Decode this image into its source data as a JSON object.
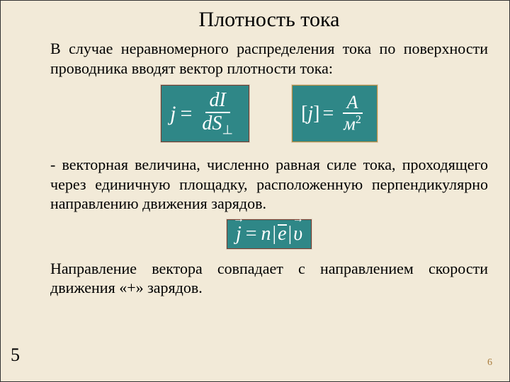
{
  "title": "Плотность тока",
  "para1": "В случае неравномерного распределения тока по поверхности проводника вводят вектор плотности тока:",
  "para2": "- векторная величина, численно равная силе тока, проходящего через единичную площадку, расположенную перпендикулярно направлению движения зарядов.",
  "para3": "Направление вектора совпадает с направлением скорости движения «+» зарядов.",
  "formula1": {
    "lhs": "j",
    "num": "dI",
    "den_base": "dS",
    "den_sub": "⊥"
  },
  "formula2": {
    "lhs_open": "[",
    "lhs_var": "j",
    "lhs_close": "]",
    "num": "А",
    "den_base": "м",
    "den_sup": "2"
  },
  "formula3": {
    "j": "j",
    "n": "n",
    "e": "e",
    "v": "υ"
  },
  "slide_number_left": "5",
  "slide_number_right": "6",
  "colors": {
    "background": "#f2ead8",
    "formula_bg": "#2f8787",
    "formula_border1": "#7a3b2c",
    "formula_border2": "#c4903a",
    "formula_text": "#ffffff",
    "body_text": "#000000",
    "corner_number": "#a97d3e"
  }
}
